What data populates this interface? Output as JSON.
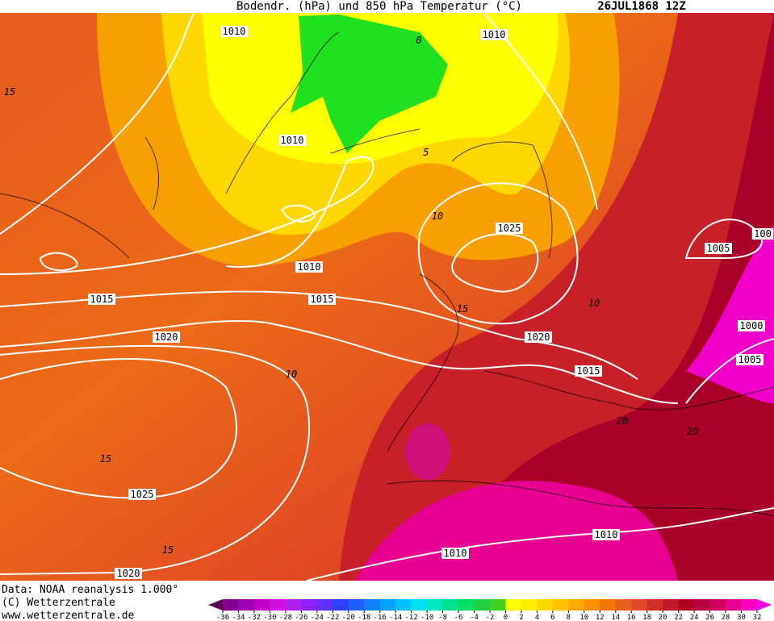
{
  "header": {
    "title": "Bodendr. (hPa) und 850 hPa Temperatur (°C)",
    "date": "26JUL1868 12Z"
  },
  "isobars": [
    1010,
    1010,
    1010,
    1010,
    1015,
    1015,
    1020,
    1025,
    1020,
    1015,
    1005,
    100,
    1000,
    1005,
    1025,
    1020,
    1010,
    1010
  ],
  "isotherms": [
    15,
    0,
    5,
    10,
    15,
    10,
    10,
    15,
    15,
    20,
    20
  ],
  "footer": [
    "Data: NOAA reanalysis 1.000°",
    "(C) Wetterzentrale",
    "www.wetterzentrale.de"
  ],
  "legend": {
    "ticks": [
      -36,
      -34,
      -32,
      -30,
      -28,
      -26,
      -24,
      -22,
      -20,
      -18,
      -16,
      -14,
      -12,
      -10,
      -8,
      -6,
      -4,
      -2,
      0,
      2,
      4,
      6,
      8,
      10,
      12,
      14,
      16,
      18,
      20,
      22,
      24,
      26,
      28,
      30,
      32
    ],
    "colors": [
      "#600050",
      "#800090",
      "#a000b0",
      "#c000c8",
      "#d010e0",
      "#b020f0",
      "#9020ff",
      "#6030ff",
      "#3040ff",
      "#2060ff",
      "#1080ff",
      "#00a0ff",
      "#00c0ff",
      "#00e0f0",
      "#00e8c0",
      "#00e090",
      "#00e060",
      "#20d040",
      "#40d020",
      "#ffff00",
      "#ffee00",
      "#ffd800",
      "#ffc000",
      "#ffa800",
      "#f89000",
      "#f07800",
      "#e86020",
      "#e04828",
      "#d03028",
      "#c01828",
      "#b00020",
      "#b80040",
      "#d00060",
      "#e80090",
      "#ff00c0",
      "#ff00e8"
    ]
  }
}
